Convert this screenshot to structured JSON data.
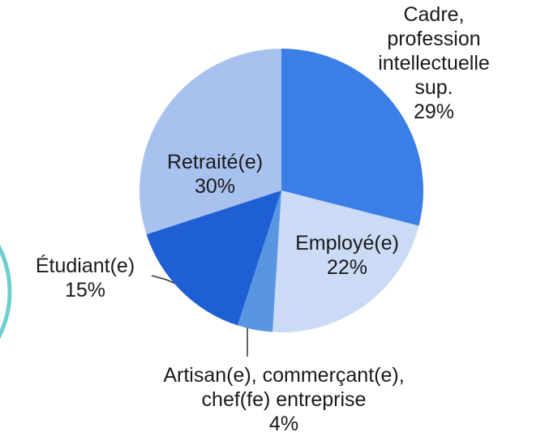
{
  "chart_data": {
    "type": "pie",
    "categories": [
      "Cadre, profession\nintellectuelle sup.",
      "Employé(e)",
      "Artisan(e), commerçant(e),\nchef(fe) entreprise",
      "Étudiant(e)",
      "Retraité(e)"
    ],
    "values": [
      29,
      22,
      4,
      15,
      30
    ],
    "value_labels": [
      "29%",
      "22%",
      "4%",
      "15%",
      "30%"
    ],
    "colors": [
      "#3b7fe6",
      "#cbdaf5",
      "#5a95e2",
      "#1f5fd4",
      "#a8c1ee"
    ]
  }
}
